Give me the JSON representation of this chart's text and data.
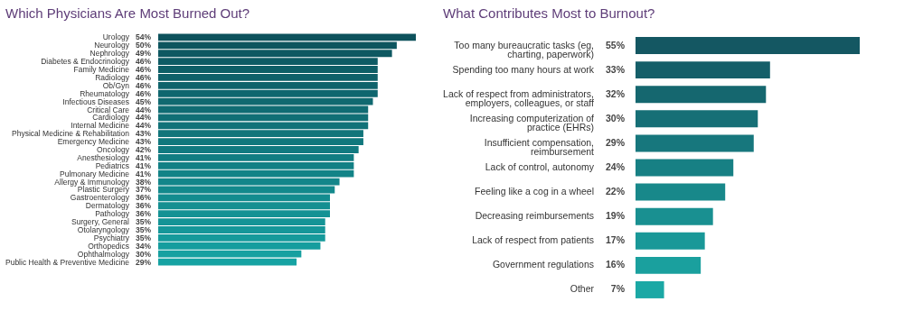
{
  "chart_data": [
    {
      "type": "bar",
      "orientation": "horizontal",
      "title": "Which Physicians Are Most Burned Out?",
      "categories": [
        "Urology",
        "Neurology",
        "Nephrology",
        "Diabetes & Endocrinology",
        "Family Medicine",
        "Radiology",
        "Ob/Gyn",
        "Rheumatology",
        "Infectious Diseases",
        "Critical Care",
        "Cardiology",
        "Internal Medicine",
        "Physical Medicine & Rehabilitation",
        "Emergency Medicine",
        "Oncology",
        "Anesthesiology",
        "Pediatrics",
        "Pulmonary Medicine",
        "Allergy & Immunology",
        "Plastic Surgery",
        "Gastroenterology",
        "Dermatology",
        "Pathology",
        "Surgery, General",
        "Otolaryngology",
        "Psychiatry",
        "Orthopedics",
        "Ophthalmology",
        "Public Health & Preventive Medicine"
      ],
      "values": [
        54,
        50,
        49,
        46,
        46,
        46,
        46,
        46,
        45,
        44,
        44,
        44,
        43,
        43,
        42,
        41,
        41,
        41,
        38,
        37,
        36,
        36,
        36,
        35,
        35,
        35,
        34,
        30,
        29
      ],
      "value_labels": [
        "54%",
        "50%",
        "49%",
        "46%",
        "46%",
        "46%",
        "46%",
        "46%",
        "45%",
        "44%",
        "44%",
        "44%",
        "43%",
        "43%",
        "42%",
        "41%",
        "41%",
        "41%",
        "38%",
        "37%",
        "36%",
        "36%",
        "36%",
        "35%",
        "35%",
        "35%",
        "34%",
        "30%",
        "29%"
      ],
      "colors": [
        "#0d525c",
        "#0d555f",
        "#0e5861",
        "#0e5b64",
        "#0e5e66",
        "#0f6069",
        "#0f636b",
        "#0f666e",
        "#106970",
        "#106c73",
        "#106f75",
        "#117278",
        "#11757a",
        "#11787d",
        "#127a80",
        "#127d82",
        "#128085",
        "#128387",
        "#13868a",
        "#13898c",
        "#138c8f",
        "#148f91",
        "#149294",
        "#149496",
        "#159799",
        "#159a9b",
        "#159d9e",
        "#16a0a0",
        "#16a3a3"
      ]
    },
    {
      "type": "bar",
      "orientation": "horizontal",
      "title": "What Contributes Most to Burnout?",
      "categories": [
        "Too many bureaucratic tasks (eg, charting, paperwork)",
        "Spending too many hours at work",
        "Lack of respect from administrators, employers, colleagues, or staff",
        "Increasing computerization of practice (EHRs)",
        "Insufficient compensation, reimbursement",
        "Lack of control, autonomy",
        "Feeling like a cog in a wheel",
        "Decreasing reimbursements",
        "Lack of respect from patients",
        "Government regulations",
        "Other"
      ],
      "values": [
        55,
        33,
        32,
        30,
        29,
        24,
        22,
        19,
        17,
        16,
        7
      ],
      "value_labels": [
        "55%",
        "33%",
        "32%",
        "30%",
        "29%",
        "24%",
        "22%",
        "19%",
        "17%",
        "16%",
        "7%"
      ],
      "colors": [
        "#145762",
        "#155f69",
        "#15676f",
        "#166f76",
        "#17777d",
        "#178084",
        "#18888a",
        "#199091",
        "#199898",
        "#1aa09e",
        "#1ba8a5"
      ]
    }
  ]
}
